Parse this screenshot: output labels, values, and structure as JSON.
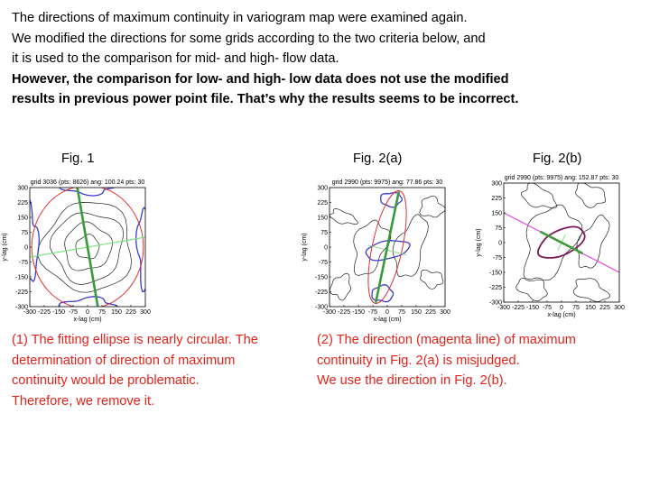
{
  "intro": {
    "lines": [
      "The directions of maximum continuity in variogram map were examined again.",
      "We modified the directions for some grids according to the two criteria below, and",
      "it is used to the comparison for mid- and high- flow data."
    ],
    "bold_lines": [
      "However, the comparison for low- and high- low data does not use the modified",
      "results in previous power point file. That’s why the results seems to be incorrect."
    ]
  },
  "figures": [
    {
      "label": "Fig. 1",
      "title": "grid 3036 (pts: 8626) ang: 100.24 pts: 30",
      "xlabel": "x-lag (cm)",
      "ylabel": "y-lag (cm)",
      "angle_deg": 100.24
    },
    {
      "label": "Fig. 2(a)",
      "title": "grid 2990 (pts: 9975) ang: 77.86 pts: 30",
      "xlabel": "x-lag (cm)",
      "ylabel": "y-lag (cm)",
      "angle_deg": 77.86
    },
    {
      "label": "Fig. 2(b)",
      "title": "grid 2990 (pts: 9975) ang: 152.87 pts: 30",
      "xlabel": "x-lag (cm)",
      "ylabel": "y-lag (cm)",
      "angle_deg": 152.87
    }
  ],
  "axis_ticks": [
    "-300",
    "-225",
    "-150",
    "-75",
    "0",
    "75",
    "150",
    "225",
    "300"
  ],
  "captions": {
    "left": [
      "(1) The fitting ellipse is nearly circular. The",
      "determination of direction of maximum",
      "continuity would be problematic.",
      "Therefore, we remove it."
    ],
    "right": [
      "(2) The direction (magenta line) of maximum",
      "continuity in Fig. 2(a) is misjudged.",
      "We use the direction in Fig. 2(b)."
    ]
  },
  "colors": {
    "caption": "#e2231a",
    "ellipse": "#e03030",
    "major_axis": "#3a9a3a",
    "minor_axis": "#7ee07e",
    "contour_highlight": "#3b3bd0",
    "direction_line": "#e040e0"
  }
}
